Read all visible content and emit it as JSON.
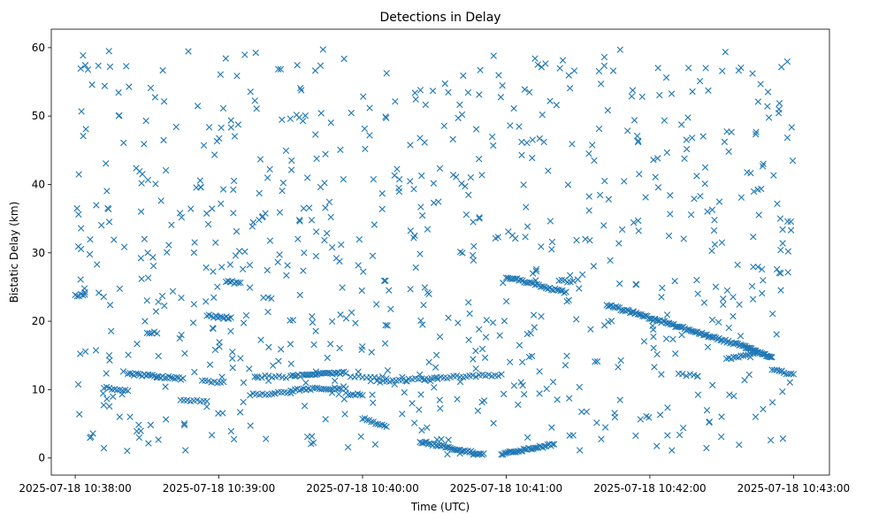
{
  "chart_data": {
    "type": "scatter",
    "title": "Detections in Delay",
    "xlabel": "Time (UTC)",
    "ylabel": "Bistatic Delay (km)",
    "xlim": [
      "2025-07-18 10:37:50",
      "2025-07-18 10:43:15"
    ],
    "ylim": [
      -2.5,
      62.7
    ],
    "xticks": [
      "2025-07-18 10:38:00",
      "2025-07-18 10:39:00",
      "2025-07-18 10:40:00",
      "2025-07-18 10:41:00",
      "2025-07-18 10:42:00",
      "2025-07-18 10:43:00"
    ],
    "yticks": [
      0,
      10,
      20,
      30,
      40,
      50,
      60
    ],
    "marker": "x",
    "color": "#1f77b4",
    "grid": false,
    "legend": "none",
    "series": [
      {
        "tracks": [
          {
            "t_start": "10:38:00",
            "t_end": "10:38:04",
            "y_start": 23.8,
            "y_end": 23.8,
            "count": 6
          },
          {
            "t_start": "10:38:12",
            "t_end": "10:38:22",
            "y_start": 10.3,
            "y_end": 9.9,
            "count": 10
          },
          {
            "t_start": "10:38:22",
            "t_end": "10:38:45",
            "y_start": 12.3,
            "y_end": 11.6,
            "count": 28
          },
          {
            "t_start": "10:38:30",
            "t_end": "10:38:33",
            "y_start": 18.3,
            "y_end": 18.3,
            "count": 4
          },
          {
            "t_start": "10:38:44",
            "t_end": "10:38:55",
            "y_start": 8.5,
            "y_end": 8.2,
            "count": 9
          },
          {
            "t_start": "10:38:55",
            "t_end": "10:39:05",
            "y_start": 20.8,
            "y_end": 20.5,
            "count": 12
          },
          {
            "t_start": "10:38:53",
            "t_end": "10:39:02",
            "y_start": 11.2,
            "y_end": 11.0,
            "count": 8
          },
          {
            "t_start": "10:39:03",
            "t_end": "10:39:09",
            "y_start": 25.8,
            "y_end": 25.6,
            "count": 8
          },
          {
            "t_start": "10:39:13",
            "t_end": "10:39:30",
            "y_start": 9.3,
            "y_end": 9.6,
            "count": 14
          },
          {
            "t_start": "10:39:15",
            "t_end": "10:39:28",
            "y_start": 11.9,
            "y_end": 11.9,
            "count": 10
          },
          {
            "t_start": "10:39:30",
            "t_end": "10:39:53",
            "y_start": 12.0,
            "y_end": 12.5,
            "count": 30
          },
          {
            "t_start": "10:39:30",
            "t_end": "10:39:53",
            "y_start": 9.9,
            "y_end": 10.3,
            "count": 26
          },
          {
            "t_start": "10:39:53",
            "t_end": "10:40:00",
            "y_start": 9.4,
            "y_end": 9.3,
            "count": 8
          },
          {
            "t_start": "10:39:55",
            "t_end": "10:40:10",
            "y_start": 11.9,
            "y_end": 11.8,
            "count": 10
          },
          {
            "t_start": "10:40:00",
            "t_end": "10:40:10",
            "y_start": 5.8,
            "y_end": 4.5,
            "count": 12
          },
          {
            "t_start": "10:40:06",
            "t_end": "10:40:58",
            "y_start": 11.2,
            "y_end": 12.2,
            "count": 40
          },
          {
            "t_start": "10:40:24",
            "t_end": "10:40:50",
            "y_start": 2.4,
            "y_end": 0.5,
            "count": 40
          },
          {
            "t_start": "10:40:58",
            "t_end": "10:41:20",
            "y_start": 0.6,
            "y_end": 2.0,
            "count": 34
          },
          {
            "t_start": "10:41:00",
            "t_end": "10:41:25",
            "y_start": 26.5,
            "y_end": 24.2,
            "count": 34
          },
          {
            "t_start": "10:41:22",
            "t_end": "10:41:28",
            "y_start": 26.0,
            "y_end": 25.8,
            "count": 6
          },
          {
            "t_start": "10:41:42",
            "t_end": "10:42:40",
            "y_start": 22.4,
            "y_end": 16.2,
            "count": 90
          },
          {
            "t_start": "10:42:12",
            "t_end": "10:42:20",
            "y_start": 12.2,
            "y_end": 12.1,
            "count": 6
          },
          {
            "t_start": "10:42:32",
            "t_end": "10:42:45",
            "y_start": 14.4,
            "y_end": 15.4,
            "count": 14
          },
          {
            "t_start": "10:42:40",
            "t_end": "10:42:51",
            "y_start": 16.2,
            "y_end": 14.6,
            "count": 24
          },
          {
            "t_start": "10:42:51",
            "t_end": "10:43:00",
            "y_start": 13.0,
            "y_end": 12.1,
            "count": 10
          }
        ],
        "clutter": {
          "t_range": [
            "10:38:00",
            "10:43:00"
          ],
          "y_range": [
            0.5,
            59.8
          ],
          "count": 780
        }
      }
    ]
  }
}
